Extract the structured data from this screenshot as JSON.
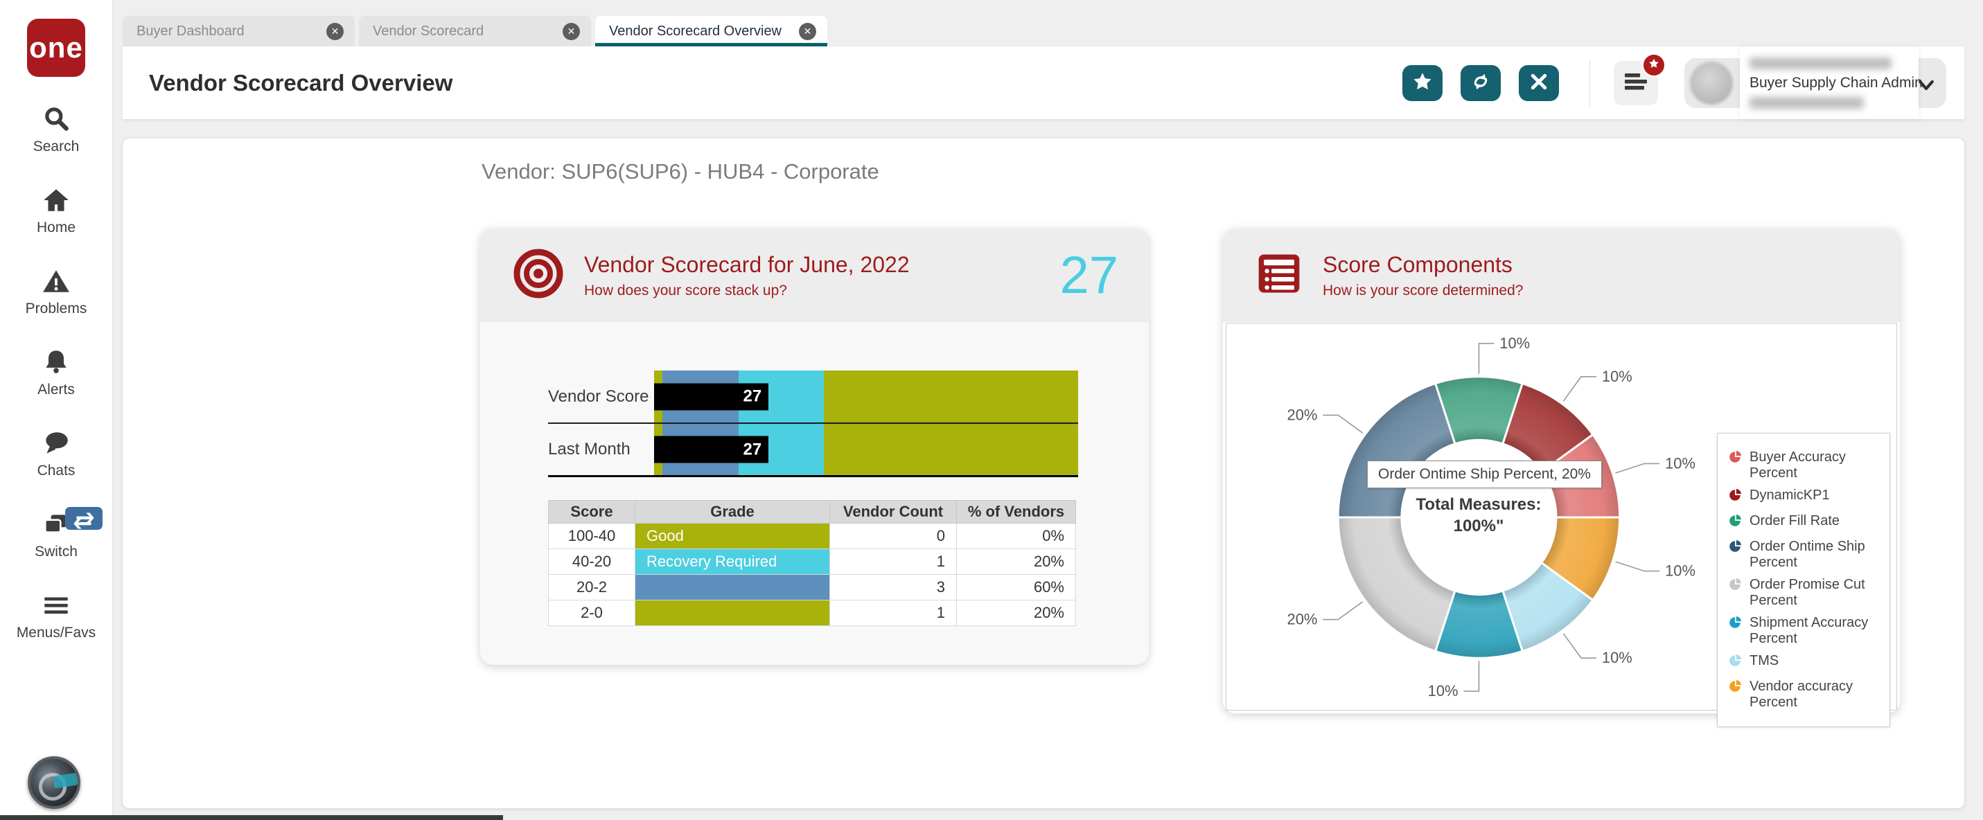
{
  "app": {
    "logo_text": "one"
  },
  "sidebar": {
    "items": [
      {
        "label": "Search",
        "icon": "search-icon"
      },
      {
        "label": "Home",
        "icon": "home-icon"
      },
      {
        "label": "Problems",
        "icon": "warning-icon"
      },
      {
        "label": "Alerts",
        "icon": "bell-icon"
      },
      {
        "label": "Chats",
        "icon": "chat-icon"
      },
      {
        "label": "Switch",
        "icon": "switch-icon",
        "badge_icon": "swap-arrows-icon"
      },
      {
        "label": "Menus/Favs",
        "icon": "hamburger-icon"
      }
    ]
  },
  "tabs": [
    {
      "label": "Buyer Dashboard",
      "active": false
    },
    {
      "label": "Vendor Scorecard",
      "active": false
    },
    {
      "label": "Vendor Scorecard Overview",
      "active": true
    }
  ],
  "header": {
    "title": "Vendor Scorecard Overview",
    "action_icons": [
      "favorite-star-icon",
      "refresh-icon",
      "close-icon"
    ],
    "menu_icon": "hamburger-icon",
    "menu_badge_icon": "star-icon",
    "user": {
      "role": "Buyer Supply Chain Admin"
    }
  },
  "page": {
    "vendor_heading": "Vendor: SUP6(SUP6) - HUB4 - Corporate"
  },
  "scorecard": {
    "title": "Vendor Scorecard for June, 2022",
    "subtitle": "How does your score stack up?",
    "score": "27",
    "table": {
      "columns": [
        "Score",
        "Grade",
        "Vendor Count",
        "% of Vendors"
      ],
      "rows": [
        {
          "score": "100-40",
          "grade": "Good",
          "grade_color": "#a9b10b",
          "count": "0",
          "pct": "0%"
        },
        {
          "score": "40-20",
          "grade": "Recovery Required",
          "grade_color": "#4ccfe0",
          "count": "1",
          "pct": "20%"
        },
        {
          "score": "20-2",
          "grade": "",
          "grade_color": "#5e90be",
          "count": "3",
          "pct": "60%"
        },
        {
          "score": "2-0",
          "grade": "",
          "grade_color": "#a9b10b",
          "count": "1",
          "pct": "20%"
        }
      ]
    }
  },
  "components": {
    "title": "Score Components",
    "subtitle": "How is your score determined?",
    "tooltip": "Order Ontime Ship Percent, 20%"
  },
  "chart_data": [
    {
      "type": "bullet",
      "xlim": [
        0,
        100
      ],
      "rows": [
        {
          "label": "Vendor Score",
          "value": 27
        },
        {
          "label": "Last Month",
          "value": 27
        }
      ],
      "bands": [
        {
          "range": [
            0,
            2
          ],
          "color": "#a9b10b",
          "grade": ""
        },
        {
          "range": [
            2,
            20
          ],
          "color": "#5e90be",
          "grade": ""
        },
        {
          "range": [
            20,
            40
          ],
          "color": "#4ccfe0",
          "grade": "Recovery Required"
        },
        {
          "range": [
            40,
            100
          ],
          "color": "#a9b10b",
          "grade": "Good"
        }
      ]
    },
    {
      "type": "donut",
      "center_label": "Total Measures:",
      "center_value": "100%\"",
      "start_angle_deg": -18,
      "slices": [
        {
          "name": "Order Fill Rate",
          "value": 10,
          "color": "#54ab8e"
        },
        {
          "name": "DynamicKP1",
          "value": 10,
          "color": "#aa4343"
        },
        {
          "name": "Buyer Accuracy Percent",
          "value": 10,
          "color": "#e37f7f"
        },
        {
          "name": "Vendor accuracy Percent",
          "value": 10,
          "color": "#f2ac45"
        },
        {
          "name": "TMS",
          "value": 10,
          "color": "#b6e3f2"
        },
        {
          "name": "Shipment Accuracy Percent",
          "value": 10,
          "color": "#3aa8c0"
        },
        {
          "name": "Order Promise Cut Percent",
          "value": 20,
          "color": "#d4d4d4"
        },
        {
          "name": "Order Ontime Ship Percent",
          "value": 20,
          "color": "#6d8ba4"
        }
      ],
      "legend": [
        {
          "name": "Buyer Accuracy Percent",
          "color": "#e05858"
        },
        {
          "name": "DynamicKP1",
          "color": "#a01818"
        },
        {
          "name": "Order Fill Rate",
          "color": "#1fa078"
        },
        {
          "name": "Order Ontime Ship Percent",
          "color": "#2a5878"
        },
        {
          "name": "Order Promise Cut Percent",
          "color": "#c6c6c6"
        },
        {
          "name": "Shipment Accuracy Percent",
          "color": "#1ba0c4"
        },
        {
          "name": "TMS",
          "color": "#a8dcee"
        },
        {
          "name": "Vendor accuracy Percent",
          "color": "#f5a023"
        }
      ],
      "legend_position": "right"
    }
  ]
}
